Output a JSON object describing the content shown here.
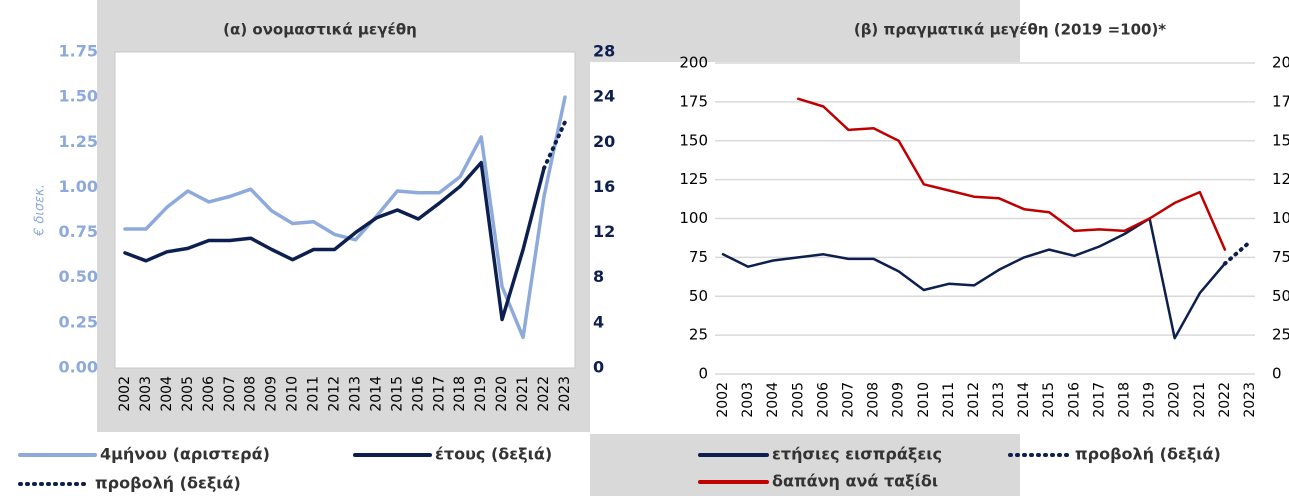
{
  "chart_data": [
    {
      "type": "line",
      "title": "(α) ονομαστικά μεγέθη",
      "ylabel": "€ δισεκ.",
      "categories": [
        "2002",
        "2003",
        "2004",
        "2005",
        "2006",
        "2007",
        "2008",
        "2009",
        "2010",
        "2011",
        "2012",
        "2013",
        "2014",
        "2015",
        "2016",
        "2017",
        "2018",
        "2019",
        "2020",
        "2021",
        "2022",
        "2023"
      ],
      "ylim": [
        0,
        1.75
      ],
      "yticks": [
        {
          "value": 0,
          "label": "0.00"
        },
        {
          "value": 0.25,
          "label": "0.25"
        },
        {
          "value": 0.5,
          "label": "0.50"
        },
        {
          "value": 0.75,
          "label": "0.75"
        },
        {
          "value": 1,
          "label": "1.00"
        },
        {
          "value": 1.25,
          "label": "1.25"
        },
        {
          "value": 1.5,
          "label": "1.50"
        },
        {
          "value": 1.75,
          "label": "1.75"
        }
      ],
      "y2lim": [
        0,
        28
      ],
      "y2ticks": [
        0,
        4,
        8,
        12,
        16,
        20,
        24,
        28
      ],
      "grid": false,
      "series": [
        {
          "name": "4μήνου (αριστερά)",
          "color": "#8eaadb",
          "style": "solid",
          "axis": "y",
          "values": [
            0.77,
            0.77,
            0.89,
            0.98,
            0.92,
            0.95,
            0.99,
            0.87,
            0.8,
            0.81,
            0.74,
            0.71,
            0.84,
            0.98,
            0.97,
            0.97,
            1.06,
            1.28,
            0.45,
            0.17,
            0.95,
            1.5
          ]
        },
        {
          "name": "έτους (δεξιά)",
          "color": "#0d1f4e",
          "style": "solid",
          "axis": "y2",
          "values": [
            10.2,
            9.5,
            10.3,
            10.6,
            11.3,
            11.3,
            11.5,
            10.5,
            9.6,
            10.5,
            10.5,
            12.0,
            13.3,
            14.0,
            13.2,
            14.6,
            16.1,
            18.2,
            4.3,
            10.5,
            17.7,
            null
          ]
        },
        {
          "name": "προβολή (δεξιά)",
          "color": "#0d1f4e",
          "style": "dotted",
          "axis": "y2",
          "values": [
            null,
            null,
            null,
            null,
            null,
            null,
            null,
            null,
            null,
            null,
            null,
            null,
            null,
            null,
            null,
            null,
            null,
            null,
            null,
            null,
            17.7,
            21.8
          ]
        }
      ]
    },
    {
      "type": "line",
      "title": "(β) πραγματικά μεγέθη (2019 =100)*",
      "categories": [
        "2002",
        "2003",
        "2004",
        "2005",
        "2006",
        "2007",
        "2008",
        "2009",
        "2010",
        "2011",
        "2012",
        "2013",
        "2014",
        "2015",
        "2016",
        "2017",
        "2018",
        "2019",
        "2020",
        "2021",
        "2022",
        "2023"
      ],
      "ylim": [
        0,
        200
      ],
      "yticks": [
        0,
        25,
        50,
        75,
        100,
        125,
        150,
        175,
        200
      ],
      "y2lim": [
        0,
        200
      ],
      "y2ticks": [
        0,
        25,
        50,
        75,
        100,
        125,
        150,
        175,
        200
      ],
      "grid": true,
      "series": [
        {
          "name": "ετήσιες εισπράξεις",
          "color": "#0d1f4e",
          "style": "solid",
          "axis": "y",
          "values": [
            77,
            69,
            73,
            75,
            77,
            74,
            74,
            66,
            54,
            58,
            57,
            67,
            75,
            80,
            76,
            82,
            90,
            100,
            23,
            52,
            71,
            null
          ]
        },
        {
          "name": "προβολή (δεξιά)",
          "color": "#0d1f4e",
          "style": "dotted",
          "axis": "y2",
          "values": [
            null,
            null,
            null,
            null,
            null,
            null,
            null,
            null,
            null,
            null,
            null,
            null,
            null,
            null,
            null,
            null,
            null,
            null,
            null,
            null,
            71,
            85
          ]
        },
        {
          "name": "δαπάνη ανά ταξίδι",
          "color": "#c00000",
          "style": "solid",
          "axis": "y",
          "values": [
            null,
            null,
            null,
            177,
            172,
            157,
            158,
            150,
            122,
            118,
            114,
            113,
            106,
            104,
            92,
            93,
            92,
            100,
            110,
            117,
            80,
            null
          ]
        }
      ]
    }
  ]
}
